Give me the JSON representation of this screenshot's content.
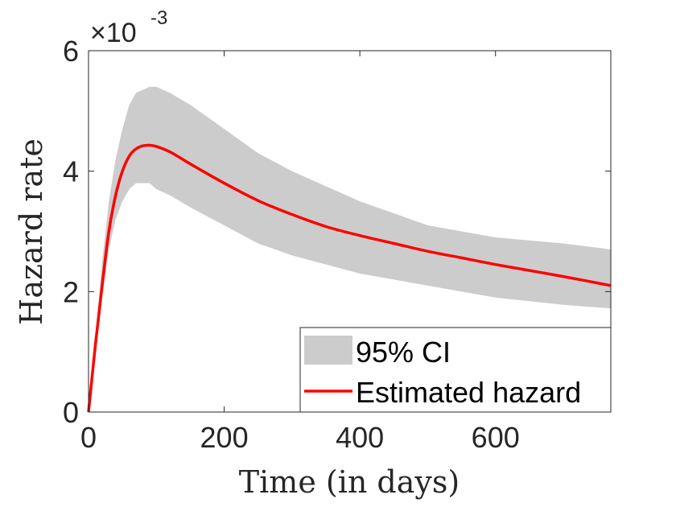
{
  "chart_data": {
    "type": "line",
    "title": "",
    "xlabel": "Time (in days)",
    "ylabel": "Hazard rate",
    "xlim": [
      0,
      770
    ],
    "ylim": [
      0,
      0.006
    ],
    "x_ticks": [
      0,
      200,
      400,
      600
    ],
    "x_tick_labels": [
      "0",
      "200",
      "400",
      "600"
    ],
    "y_ticks": [
      0,
      0.002,
      0.004,
      0.006
    ],
    "y_tick_labels": [
      "0",
      "2",
      "4",
      "6"
    ],
    "y_exponent_label": "×10",
    "y_exponent_power": "-3",
    "grid": false,
    "legend_position": "bottom-right",
    "colors": {
      "ci_band": "#cccccc",
      "estimate": "#ff0000",
      "axes": "#262626"
    },
    "series": [
      {
        "name": "95% CI",
        "kind": "band",
        "x": [
          0,
          10,
          20,
          30,
          40,
          50,
          60,
          70,
          80,
          90,
          100,
          120,
          150,
          200,
          250,
          300,
          400,
          500,
          600,
          700,
          770
        ],
        "lower": [
          0,
          0.0009,
          0.0019,
          0.0027,
          0.0032,
          0.0035,
          0.0037,
          0.0038,
          0.0038,
          0.0038,
          0.0037,
          0.0036,
          0.0034,
          0.0031,
          0.0028,
          0.0026,
          0.0023,
          0.0021,
          0.0019,
          0.00178,
          0.00172
        ],
        "upper": [
          0,
          0.0012,
          0.0025,
          0.0035,
          0.0042,
          0.0047,
          0.0051,
          0.0053,
          0.00535,
          0.0054,
          0.0054,
          0.0053,
          0.0051,
          0.0047,
          0.0043,
          0.004,
          0.0035,
          0.0031,
          0.0029,
          0.0028,
          0.0027
        ]
      },
      {
        "name": "Estimated hazard",
        "kind": "line",
        "x": [
          0,
          10,
          20,
          30,
          40,
          50,
          60,
          70,
          80,
          90,
          100,
          120,
          150,
          200,
          250,
          300,
          350,
          400,
          450,
          500,
          550,
          600,
          650,
          700,
          770
        ],
        "y": [
          0,
          0.0011,
          0.0021,
          0.003,
          0.0036,
          0.004,
          0.00425,
          0.00437,
          0.00442,
          0.00443,
          0.00441,
          0.00432,
          0.00412,
          0.0038,
          0.00351,
          0.00328,
          0.00308,
          0.00293,
          0.0028,
          0.00267,
          0.00256,
          0.00245,
          0.00235,
          0.00225,
          0.0021
        ]
      }
    ],
    "legend": [
      {
        "label": "95% CI",
        "kind": "patch"
      },
      {
        "label": "Estimated hazard",
        "kind": "line"
      }
    ]
  }
}
